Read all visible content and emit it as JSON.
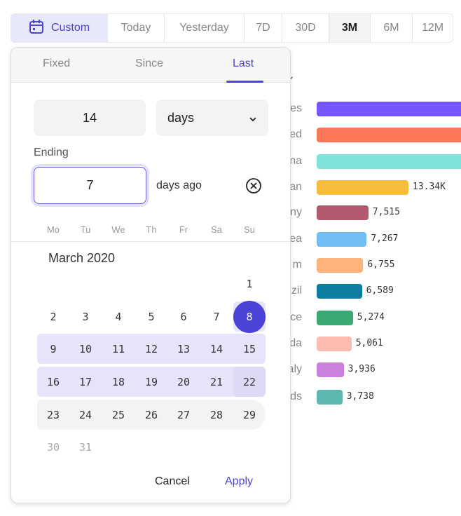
{
  "presets": [
    {
      "label": "Custom",
      "icon": "calendar-icon",
      "selected": true
    },
    {
      "label": "Today"
    },
    {
      "label": "Yesterday"
    },
    {
      "label": "7D"
    },
    {
      "label": "30D"
    },
    {
      "label": "3M",
      "active": true
    },
    {
      "label": "6M"
    },
    {
      "label": "12M"
    }
  ],
  "chart_data": {
    "type": "bar",
    "categories": [
      "es",
      "ed",
      "na",
      "an",
      "ny",
      "ea",
      "m",
      "zil",
      "ce",
      "da",
      "aly",
      "ds"
    ],
    "values": [
      null,
      null,
      null,
      13340,
      7515,
      7267,
      6755,
      6589,
      5274,
      5061,
      3936,
      3738
    ],
    "value_labels": [
      "",
      "",
      "",
      "13.34K",
      "7,515",
      "7,267",
      "6,755",
      "6,589",
      "5,274",
      "5,061",
      "3,936",
      "3,738"
    ],
    "colors": [
      "#7856ff",
      "#ff7557",
      "#80e1d9",
      "#f8bc3b",
      "#b2596e",
      "#72bef4",
      "#ffb27a",
      "#0d7ea0",
      "#3ba974",
      "#febbb2",
      "#cb80dc",
      "#5cb7af"
    ]
  },
  "popup": {
    "tabs": [
      {
        "label": "Fixed"
      },
      {
        "label": "Since"
      },
      {
        "label": "Last",
        "active": true
      }
    ],
    "count": "14",
    "unit": "days",
    "ending_label": "Ending",
    "ending_value": "7",
    "ending_suffix": "days ago",
    "weekdays": [
      "Mo",
      "Tu",
      "We",
      "Th",
      "Fr",
      "Sa",
      "Su"
    ],
    "month": "March 2020",
    "weeks": [
      [
        "",
        "",
        "",
        "",
        "",
        "",
        "1"
      ],
      [
        "2",
        "3",
        "4",
        "5",
        "6",
        "7",
        "8"
      ],
      [
        "9",
        "10",
        "11",
        "12",
        "13",
        "14",
        "15"
      ],
      [
        "16",
        "17",
        "18",
        "19",
        "20",
        "21",
        "22"
      ],
      [
        "23",
        "24",
        "25",
        "26",
        "27",
        "28",
        "29"
      ],
      [
        "30",
        "31",
        "",
        "",
        "",
        "",
        ""
      ]
    ],
    "selected_day": "8",
    "cancel": "Cancel",
    "apply": "Apply"
  },
  "accent": "#4b43d8"
}
